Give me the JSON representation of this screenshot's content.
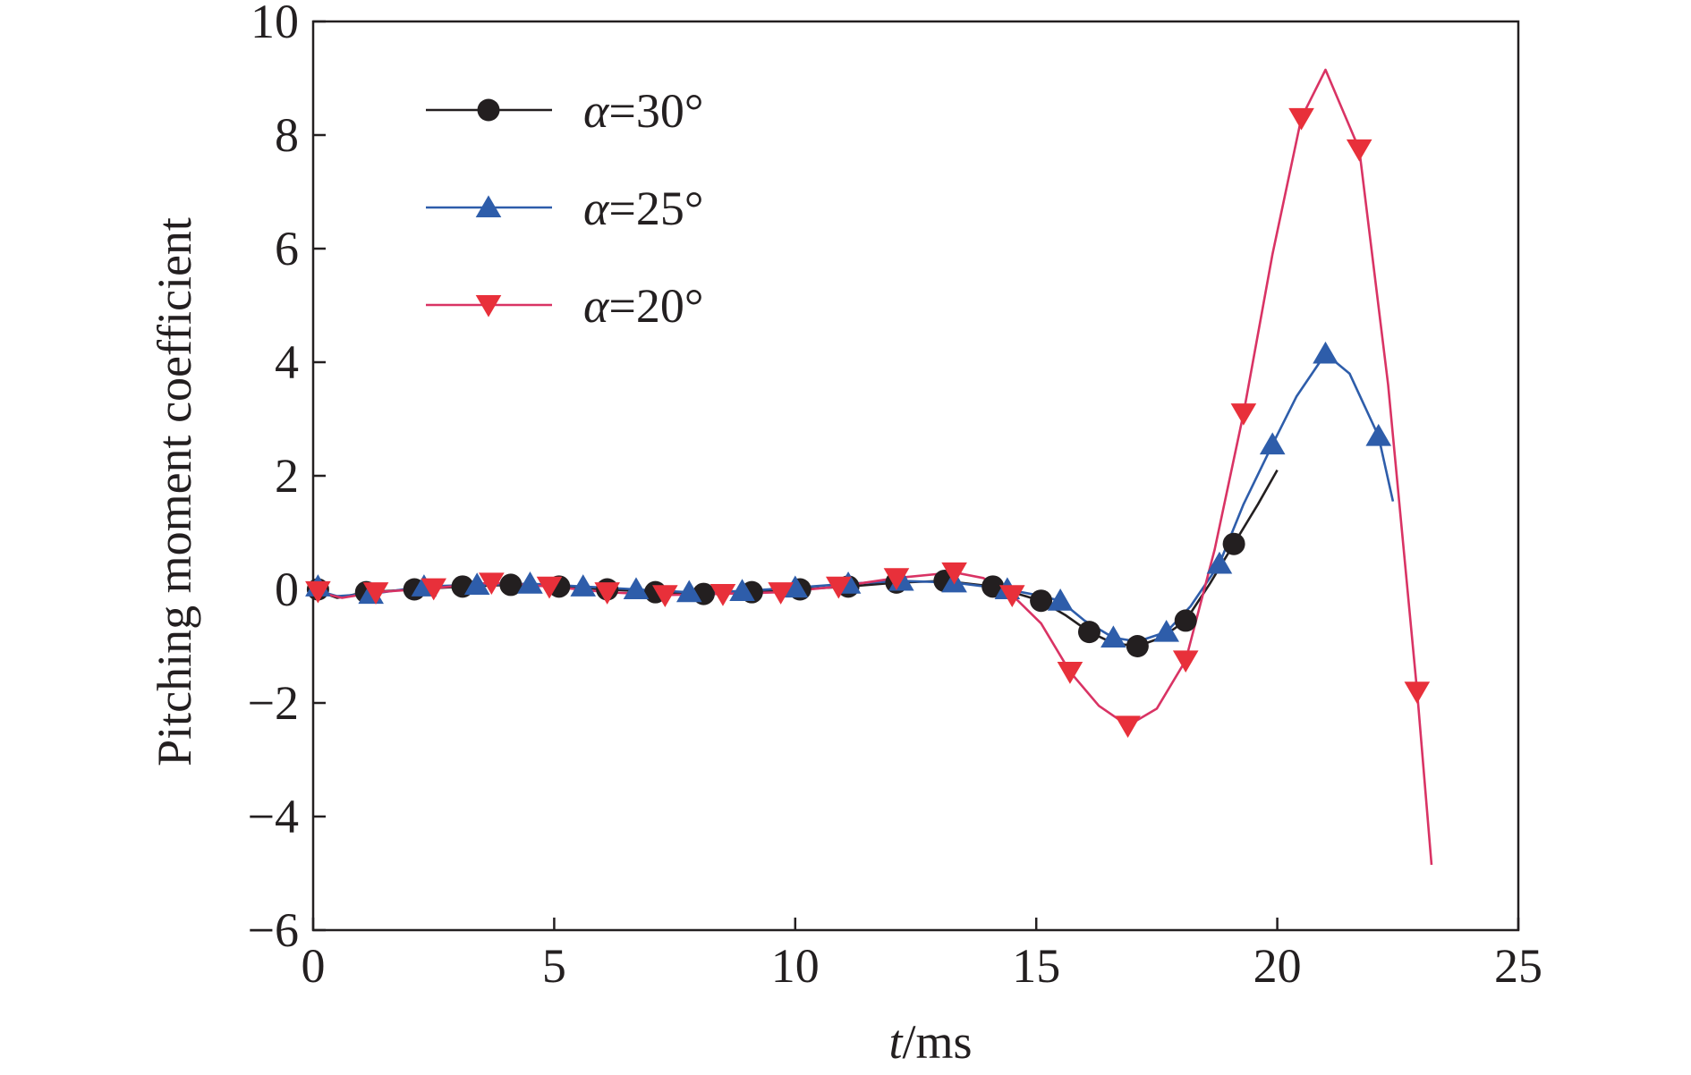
{
  "chart_data": {
    "type": "line",
    "title": "",
    "xlabel": {
      "var": "t",
      "unit": "/ms"
    },
    "ylabel": "Pitching moment coefficient",
    "xlim": [
      0,
      25
    ],
    "ylim": [
      -6,
      10
    ],
    "xticks": [
      0,
      5,
      10,
      15,
      20,
      25
    ],
    "yticks": [
      -6,
      -4,
      -2,
      0,
      2,
      4,
      6,
      8,
      10
    ],
    "ytick_labels": [
      "−6",
      "−4",
      "−2",
      "0",
      "2",
      "4",
      "6",
      "8",
      "10"
    ],
    "grid": false,
    "legend_position": "top-left",
    "series": [
      {
        "name": {
          "var": "α",
          "rest": "=30°"
        },
        "color": "#231f20",
        "marker": "circle",
        "markers": [
          [
            0.1,
            0.0
          ],
          [
            1.1,
            -0.05
          ],
          [
            2.1,
            0.0
          ],
          [
            3.1,
            0.05
          ],
          [
            4.1,
            0.08
          ],
          [
            5.1,
            0.05
          ],
          [
            6.1,
            0.0
          ],
          [
            7.1,
            -0.05
          ],
          [
            8.1,
            -0.08
          ],
          [
            9.1,
            -0.05
          ],
          [
            10.1,
            0.0
          ],
          [
            11.1,
            0.05
          ],
          [
            12.1,
            0.12
          ],
          [
            13.1,
            0.15
          ],
          [
            14.1,
            0.05
          ],
          [
            15.1,
            -0.2
          ],
          [
            16.1,
            -0.75
          ],
          [
            17.1,
            -1.0
          ],
          [
            18.1,
            -0.55
          ],
          [
            19.1,
            0.8
          ]
        ],
        "line": [
          [
            0.0,
            0.0
          ],
          [
            0.5,
            -0.15
          ],
          [
            1.1,
            -0.05
          ],
          [
            2.1,
            0.0
          ],
          [
            3.1,
            0.05
          ],
          [
            4.1,
            0.08
          ],
          [
            5.1,
            0.05
          ],
          [
            6.1,
            0.0
          ],
          [
            7.1,
            -0.05
          ],
          [
            8.1,
            -0.08
          ],
          [
            9.1,
            -0.05
          ],
          [
            10.1,
            0.0
          ],
          [
            11.1,
            0.05
          ],
          [
            12.1,
            0.12
          ],
          [
            13.1,
            0.15
          ],
          [
            14.1,
            0.05
          ],
          [
            15.1,
            -0.2
          ],
          [
            15.6,
            -0.45
          ],
          [
            16.1,
            -0.75
          ],
          [
            16.6,
            -0.95
          ],
          [
            17.1,
            -1.0
          ],
          [
            17.6,
            -0.85
          ],
          [
            18.1,
            -0.55
          ],
          [
            18.6,
            0.1
          ],
          [
            19.1,
            0.8
          ],
          [
            19.6,
            1.5
          ],
          [
            20.0,
            2.1
          ]
        ]
      },
      {
        "name": {
          "var": "α",
          "rest": "=25°"
        },
        "color": "#2e5daa",
        "marker": "triangle-up",
        "markers": [
          [
            0.1,
            0.05
          ],
          [
            1.2,
            -0.08
          ],
          [
            2.3,
            0.05
          ],
          [
            3.4,
            0.08
          ],
          [
            4.5,
            0.1
          ],
          [
            5.6,
            0.05
          ],
          [
            6.7,
            0.0
          ],
          [
            7.8,
            -0.05
          ],
          [
            8.9,
            -0.03
          ],
          [
            10.0,
            0.03
          ],
          [
            11.1,
            0.1
          ],
          [
            12.2,
            0.15
          ],
          [
            13.3,
            0.12
          ],
          [
            14.4,
            0.0
          ],
          [
            15.5,
            -0.2
          ],
          [
            16.6,
            -0.85
          ],
          [
            17.7,
            -0.75
          ],
          [
            18.8,
            0.45
          ],
          [
            19.9,
            2.55
          ],
          [
            21.0,
            4.15
          ],
          [
            22.1,
            2.7
          ]
        ],
        "line": [
          [
            0.0,
            0.0
          ],
          [
            0.5,
            -0.12
          ],
          [
            1.2,
            -0.08
          ],
          [
            2.3,
            0.05
          ],
          [
            3.4,
            0.08
          ],
          [
            4.5,
            0.1
          ],
          [
            5.6,
            0.05
          ],
          [
            6.7,
            0.0
          ],
          [
            7.8,
            -0.05
          ],
          [
            8.9,
            -0.03
          ],
          [
            10.0,
            0.03
          ],
          [
            11.1,
            0.1
          ],
          [
            12.2,
            0.15
          ],
          [
            13.3,
            0.12
          ],
          [
            14.4,
            0.0
          ],
          [
            15.0,
            -0.1
          ],
          [
            15.5,
            -0.2
          ],
          [
            16.0,
            -0.55
          ],
          [
            16.6,
            -0.85
          ],
          [
            17.1,
            -0.92
          ],
          [
            17.7,
            -0.75
          ],
          [
            18.2,
            -0.3
          ],
          [
            18.8,
            0.45
          ],
          [
            19.3,
            1.5
          ],
          [
            19.9,
            2.55
          ],
          [
            20.4,
            3.4
          ],
          [
            21.0,
            4.15
          ],
          [
            21.5,
            3.8
          ],
          [
            22.1,
            2.7
          ],
          [
            22.4,
            1.55
          ]
        ]
      },
      {
        "name": {
          "var": "α",
          "rest": "=20°"
        },
        "color": "#e8303a",
        "line_color": "#d93364",
        "marker": "triangle-down",
        "markers": [
          [
            0.1,
            -0.03
          ],
          [
            1.3,
            -0.05
          ],
          [
            2.5,
            0.02
          ],
          [
            3.7,
            0.12
          ],
          [
            4.9,
            0.05
          ],
          [
            6.1,
            -0.05
          ],
          [
            7.3,
            -0.1
          ],
          [
            8.5,
            -0.08
          ],
          [
            9.7,
            -0.05
          ],
          [
            10.9,
            0.05
          ],
          [
            12.1,
            0.2
          ],
          [
            13.3,
            0.3
          ],
          [
            14.5,
            -0.1
          ],
          [
            15.7,
            -1.45
          ],
          [
            16.9,
            -2.4
          ],
          [
            18.1,
            -1.25
          ],
          [
            19.3,
            3.1
          ],
          [
            20.5,
            8.3
          ],
          [
            21.7,
            7.75
          ],
          [
            22.9,
            -1.8
          ]
        ],
        "line": [
          [
            0.0,
            -0.03
          ],
          [
            0.6,
            -0.15
          ],
          [
            1.3,
            -0.05
          ],
          [
            2.5,
            0.02
          ],
          [
            3.7,
            0.12
          ],
          [
            4.9,
            0.05
          ],
          [
            6.1,
            -0.05
          ],
          [
            7.3,
            -0.1
          ],
          [
            8.5,
            -0.08
          ],
          [
            9.7,
            -0.05
          ],
          [
            10.9,
            0.05
          ],
          [
            12.1,
            0.2
          ],
          [
            13.3,
            0.3
          ],
          [
            13.9,
            0.2
          ],
          [
            14.5,
            -0.1
          ],
          [
            15.1,
            -0.6
          ],
          [
            15.7,
            -1.45
          ],
          [
            16.3,
            -2.05
          ],
          [
            16.9,
            -2.4
          ],
          [
            17.5,
            -2.1
          ],
          [
            18.1,
            -1.25
          ],
          [
            18.7,
            0.7
          ],
          [
            19.3,
            3.1
          ],
          [
            19.9,
            5.9
          ],
          [
            20.5,
            8.3
          ],
          [
            21.0,
            9.15
          ],
          [
            21.7,
            7.75
          ],
          [
            22.3,
            3.6
          ],
          [
            22.9,
            -1.8
          ],
          [
            23.2,
            -4.85
          ]
        ]
      }
    ]
  }
}
